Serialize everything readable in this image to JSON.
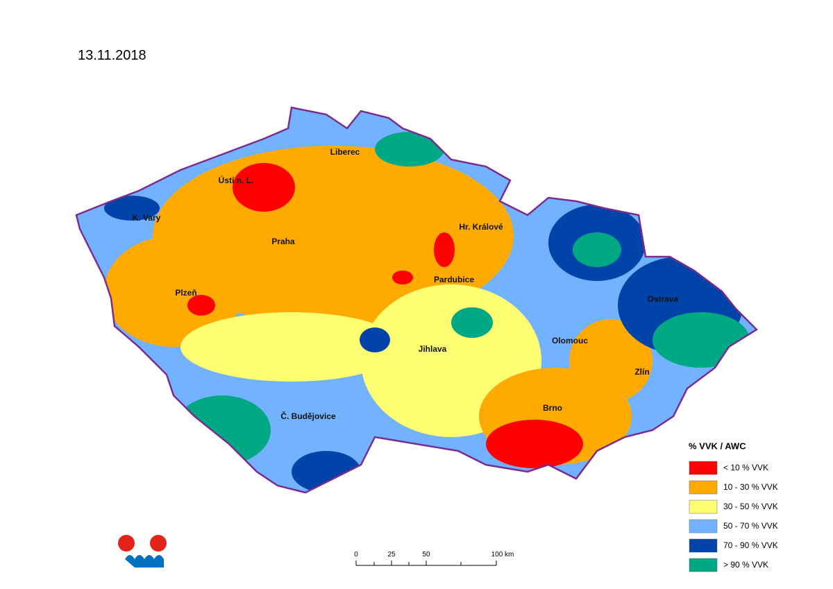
{
  "title": "13.11.2018",
  "cities": [
    {
      "label": "Liberec"
    },
    {
      "label": "Ústí n. L."
    },
    {
      "label": "K. Vary"
    },
    {
      "label": "Praha"
    },
    {
      "label": "Hr. Králové"
    },
    {
      "label": "Pardubice"
    },
    {
      "label": "Plzeň"
    },
    {
      "label": "Ostrava"
    },
    {
      "label": "Olomouc"
    },
    {
      "label": "Jihlava"
    },
    {
      "label": "Zlín"
    },
    {
      "label": "Brno"
    },
    {
      "label": "Č. Budějovice"
    }
  ],
  "legend": {
    "title": "% VVK / AWC",
    "items": [
      {
        "label": "< 10 % VVK",
        "color": "#ff0000"
      },
      {
        "label": "10 - 30 % VVK",
        "color": "#ffaa00"
      },
      {
        "label": "30 - 50 % VVK",
        "color": "#ffff73"
      },
      {
        "label": "50 - 70 % VVK",
        "color": "#73b2ff"
      },
      {
        "label": "70 - 90 % VVK",
        "color": "#0044aa"
      },
      {
        "label": "> 90 % VVK",
        "color": "#00a884"
      }
    ]
  },
  "scale_bar": {
    "ticks": [
      "0",
      "25",
      "50",
      "100 km"
    ]
  }
}
